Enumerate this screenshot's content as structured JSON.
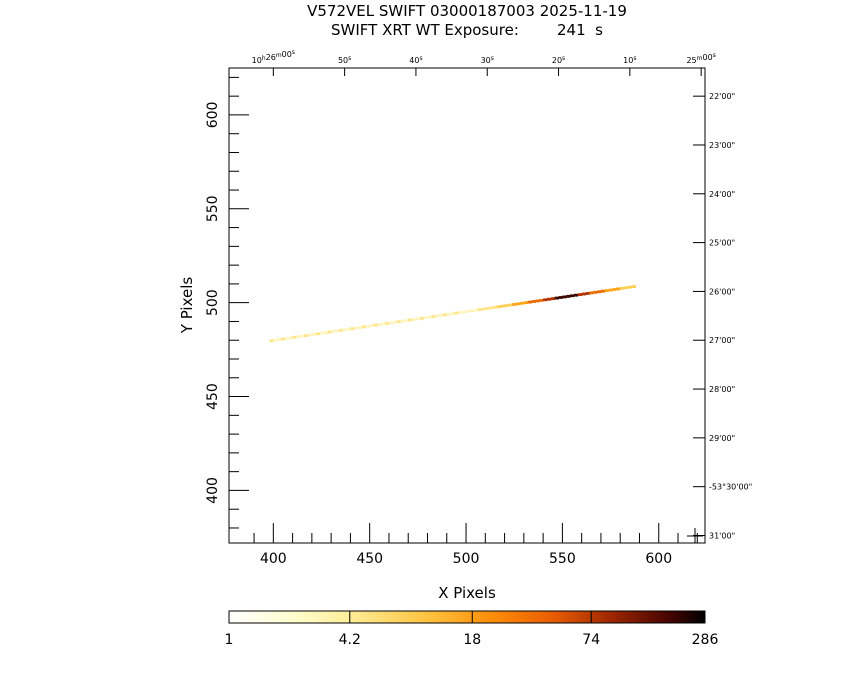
{
  "chart_data": {
    "type": "heatmap",
    "title": "V572VEL SWIFT 03000187003 2025-11-19",
    "subtitle": "SWIFT XRT WT Exposure:        241  s",
    "xlabel": "X Pixels",
    "ylabel": "Y Pixels",
    "xlim": [
      377,
      624
    ],
    "ylim": [
      372,
      625
    ],
    "x_ticks": [
      400,
      450,
      500,
      550,
      600
    ],
    "y_ticks": [
      400,
      450,
      500,
      550,
      600
    ],
    "ra_labels": [
      {
        "h": "10",
        "m": "26",
        "s": "00",
        "x": 400
      },
      {
        "s": "50",
        "x": 437
      },
      {
        "s": "40",
        "x": 474
      },
      {
        "s": "30",
        "x": 511
      },
      {
        "s": "20",
        "x": 548
      },
      {
        "s": "10",
        "x": 585
      },
      {
        "m": "25",
        "s": "00",
        "x": 622
      }
    ],
    "dec_labels": [
      {
        "text": "22'00\"",
        "y": 610
      },
      {
        "text": "23'00\"",
        "y": 584
      },
      {
        "text": "24'00\"",
        "y": 558
      },
      {
        "text": "25'00\"",
        "y": 532
      },
      {
        "text": "26'00\"",
        "y": 506
      },
      {
        "text": "27'00\"",
        "y": 480
      },
      {
        "text": "28'00\"",
        "y": 454
      },
      {
        "text": "29'00\"",
        "y": 428
      },
      {
        "text": "-53°30'00\"",
        "y": 402
      },
      {
        "text": "31'00\"",
        "y": 376
      }
    ],
    "colorbar": {
      "scale": "log",
      "min": 1,
      "max": 286,
      "tick_labels": [
        "1",
        "4.2",
        "18",
        "74",
        "286"
      ]
    },
    "streak": {
      "x_start": 398,
      "x_end": 587,
      "y_start": 479,
      "y_end": 508,
      "peak_x": 551,
      "peak_value": 286
    }
  }
}
